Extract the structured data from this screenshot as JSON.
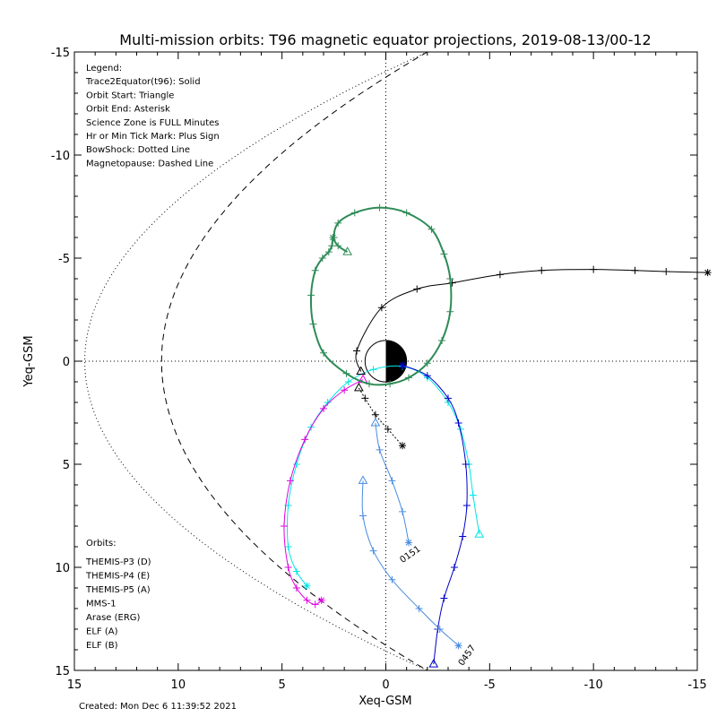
{
  "chart_data": {
    "type": "line",
    "title": "Multi-mission orbits: T96 magnetic equator projections, 2019-08-13/00-12",
    "xlabel": "Xeq-GSM",
    "ylabel": "Yeq-GSM",
    "xlim": [
      15,
      -15
    ],
    "ylim": [
      -15,
      15
    ],
    "x_ticks": [
      "15",
      "10",
      "5",
      "0",
      "-5",
      "-10",
      "-15"
    ],
    "y_ticks": [
      "-15",
      "-10",
      "-5",
      "0",
      "5",
      "10",
      "15"
    ],
    "grid": false,
    "legend_lines": [
      "Legend:",
      "Trace2Equator(t96): Solid",
      "Orbit Start: Triangle",
      "Orbit End: Asterisk",
      "Science Zone is FULL Minutes",
      "Hr or Min Tick Mark: Plus Sign",
      "BowShock: Dotted Line",
      "Magnetopause: Dashed Line"
    ],
    "orbits_title": "Orbits:",
    "orbits": [
      {
        "label": "THEMIS-P3 (D)",
        "color": "#00e5e5"
      },
      {
        "label": "THEMIS-P4 (E)",
        "color": "#0000c8"
      },
      {
        "label": "THEMIS-P5 (A)",
        "color": "#e000e0"
      },
      {
        "label": "MMS-1",
        "color": "#000000"
      },
      {
        "label": "Arase (ERG)",
        "color": "#2e8b57"
      },
      {
        "label": "ELF (A)",
        "color": "#4a8ce0"
      },
      {
        "label": "ELF (B)",
        "color": "#e00000"
      }
    ],
    "annotations": [
      "0151",
      "0457"
    ],
    "created": "Created: Mon Dec  6 11:39:52 2021",
    "series": [
      {
        "name": "THEMIS-P3 (D)",
        "color": "#00e5e5",
        "points": [
          [
            -4.5,
            8.4
          ],
          [
            -4.2,
            6.5
          ],
          [
            -4.0,
            5.0
          ],
          [
            -3.6,
            3.3
          ],
          [
            -3.0,
            2.0
          ],
          [
            -2.0,
            0.8
          ],
          [
            -0.8,
            0.25
          ],
          [
            0.6,
            0.4
          ],
          [
            1.8,
            1.0
          ],
          [
            2.8,
            2.0
          ],
          [
            3.6,
            3.2
          ],
          [
            4.3,
            5.0
          ],
          [
            4.7,
            7.0
          ],
          [
            4.7,
            9.0
          ],
          [
            4.3,
            10.2
          ],
          [
            3.8,
            10.9
          ]
        ]
      },
      {
        "name": "THEMIS-P4 (E)",
        "color": "#0000c8",
        "points": [
          [
            -2.3,
            14.7
          ],
          [
            -2.5,
            13.0
          ],
          [
            -2.8,
            11.5
          ],
          [
            -3.3,
            10.0
          ],
          [
            -3.7,
            8.5
          ],
          [
            -3.9,
            7.0
          ],
          [
            -3.85,
            5.0
          ],
          [
            -3.5,
            3.0
          ],
          [
            -3.0,
            1.8
          ],
          [
            -2.0,
            0.7
          ],
          [
            -0.8,
            0.2
          ]
        ]
      },
      {
        "name": "THEMIS-P5 (A)",
        "color": "#e000e0",
        "points": [
          [
            1.1,
            0.9
          ],
          [
            2.0,
            1.4
          ],
          [
            3.0,
            2.3
          ],
          [
            3.9,
            3.8
          ],
          [
            4.6,
            5.8
          ],
          [
            4.9,
            8.0
          ],
          [
            4.7,
            10.0
          ],
          [
            4.3,
            11.0
          ],
          [
            3.8,
            11.6
          ],
          [
            3.4,
            11.8
          ],
          [
            3.1,
            11.6
          ]
        ]
      },
      {
        "name": "MMS-1",
        "color": "#000000",
        "points": [
          [
            1.3,
            1.3
          ],
          [
            1.0,
            1.8
          ],
          [
            0.5,
            2.6
          ],
          [
            -0.1,
            3.3
          ],
          [
            -0.8,
            4.1
          ]
        ]
      },
      {
        "name": "MMS-1",
        "color": "#000000",
        "points": [
          [
            1.2,
            0.5
          ],
          [
            1.4,
            -0.5
          ],
          [
            0.2,
            -2.6
          ],
          [
            -1.5,
            -3.5
          ],
          [
            -3.2,
            -3.8
          ],
          [
            -5.5,
            -4.2
          ],
          [
            -7.5,
            -4.4
          ],
          [
            -10.0,
            -4.45
          ],
          [
            -12.0,
            -4.4
          ],
          [
            -13.5,
            -4.35
          ],
          [
            -15.5,
            -4.3
          ]
        ]
      },
      {
        "name": "Arase (ERG)",
        "color": "#2e8b57",
        "points": [
          [
            1.85,
            -5.3
          ],
          [
            2.3,
            -5.6
          ],
          [
            2.5,
            -6.0
          ],
          [
            2.3,
            -6.7
          ],
          [
            1.5,
            -7.2
          ],
          [
            0.3,
            -7.45
          ],
          [
            -1.0,
            -7.2
          ],
          [
            -2.2,
            -6.4
          ],
          [
            -2.8,
            -5.2
          ],
          [
            -3.1,
            -4.0
          ],
          [
            -3.1,
            -2.4
          ],
          [
            -2.7,
            -1.0
          ],
          [
            -2.0,
            0.1
          ],
          [
            -1.1,
            0.8
          ],
          [
            -0.2,
            1.1
          ],
          [
            0.8,
            1.1
          ],
          [
            1.9,
            0.6
          ],
          [
            3.0,
            -0.4
          ],
          [
            3.5,
            -1.8
          ],
          [
            3.6,
            -3.2
          ],
          [
            3.4,
            -4.4
          ],
          [
            3.05,
            -5.0
          ],
          [
            2.75,
            -5.3
          ],
          [
            2.6,
            -5.6
          ],
          [
            2.55,
            -6.0
          ]
        ]
      },
      {
        "name": "ELF (A)",
        "color": "#4a8ce0",
        "points": [
          [
            0.5,
            3.0
          ],
          [
            0.3,
            4.3
          ],
          [
            -0.3,
            5.8
          ],
          [
            -0.8,
            7.3
          ],
          [
            -1.1,
            8.8
          ]
        ]
      },
      {
        "name": "ELF (A)",
        "color": "#4a8ce0",
        "points": [
          [
            1.1,
            5.8
          ],
          [
            1.1,
            7.5
          ],
          [
            0.6,
            9.2
          ],
          [
            -0.3,
            10.6
          ],
          [
            -1.6,
            12.0
          ],
          [
            -2.6,
            13.0
          ],
          [
            -3.5,
            13.8
          ]
        ]
      }
    ],
    "bowshock": {
      "x0": 14.5,
      "yspan": 15
    },
    "magnetopause": {
      "x0": 10.8,
      "yspan": 15
    }
  }
}
